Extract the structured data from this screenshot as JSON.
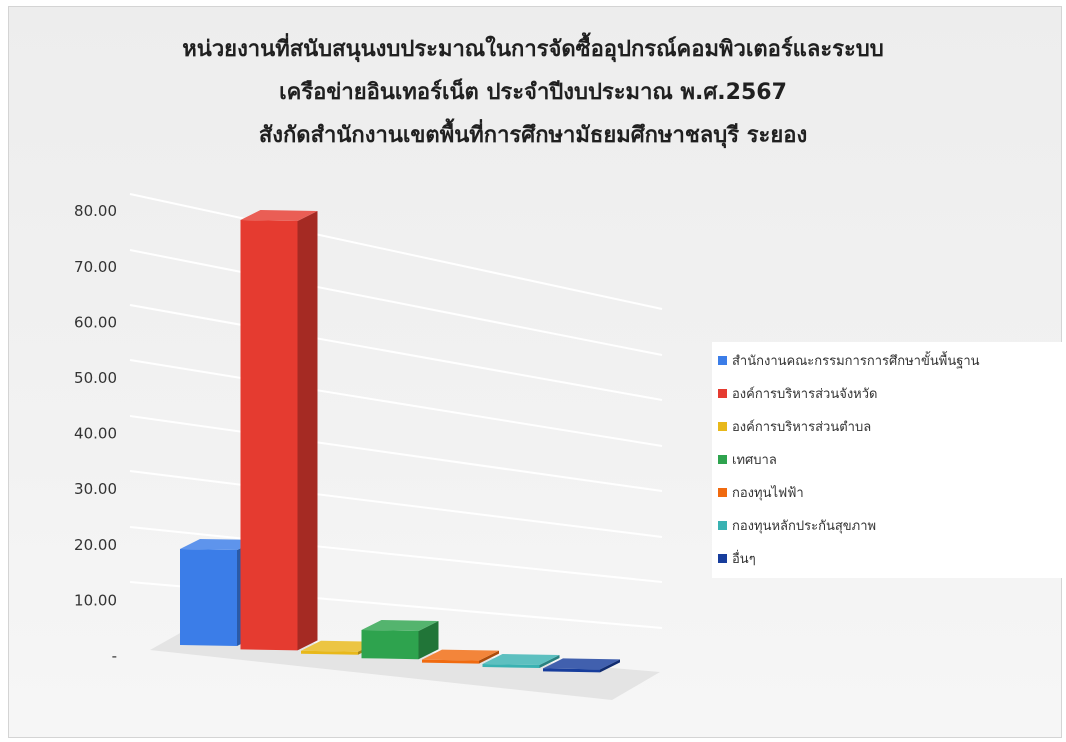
{
  "chart_data": {
    "type": "bar",
    "title": [
      "หน่วยงานที่สนับสนุนงบประมาณในการจัดซื้ออุปกรณ์คอมพิวเตอร์และระบบ",
      "เครือข่ายอินเทอร์เน็ต ประจำปีงบประมาณ พ.ศ.2567",
      "สังกัดสำนักงานเขตพื้นที่การศึกษามัธยมศึกษาชลบุรี ระยอง"
    ],
    "y_ticks": [
      "-",
      "10.00",
      "20.00",
      "30.00",
      "40.00",
      "50.00",
      "60.00",
      "70.00",
      "80.00"
    ],
    "ylim": [
      0,
      80
    ],
    "grid": true,
    "legend_position": "right",
    "series": [
      {
        "name": "สำนักงานคณะกรรมการการศึกษาขั้นพื้นฐาน",
        "value": 17,
        "color": "#3b7de8"
      },
      {
        "name": "องค์การบริหารส่วนจังหวัด",
        "value": 76,
        "color": "#e53b30"
      },
      {
        "name": "องค์การบริหารส่วนตำบล",
        "value": 0,
        "color": "#e8b81a"
      },
      {
        "name": "เทศบาล",
        "value": 5,
        "color": "#2ea34e"
      },
      {
        "name": "กองทุนไฟฟ้า",
        "value": 0,
        "color": "#f06a0f"
      },
      {
        "name": "กองทุนหลักประกันสุขภาพ",
        "value": 0,
        "color": "#39b2b2"
      },
      {
        "name": "อื่นๆ",
        "value": 0,
        "color": "#173d9c"
      }
    ]
  }
}
